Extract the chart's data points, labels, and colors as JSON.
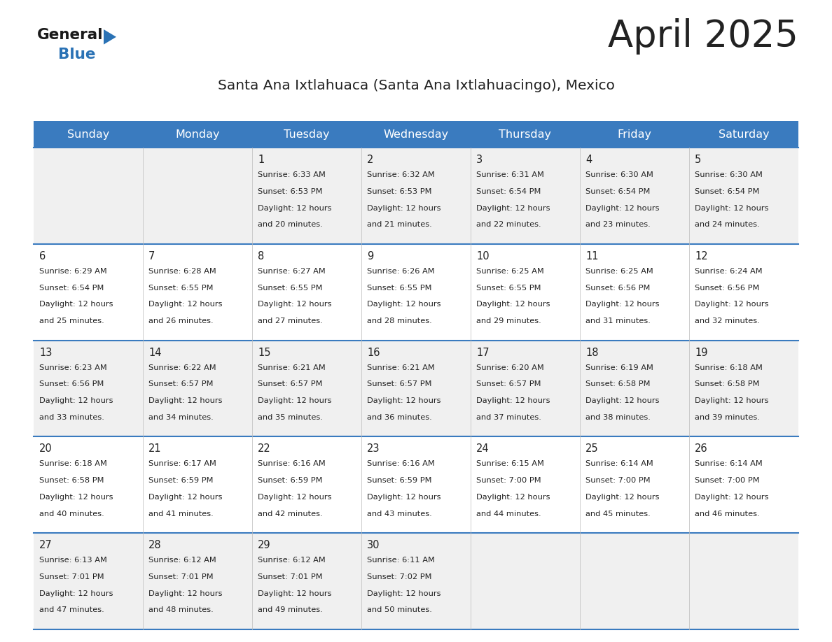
{
  "title": "April 2025",
  "subtitle": "Santa Ana Ixtlahuaca (Santa Ana Ixtlahuacingo), Mexico",
  "header_color": "#3a7bbf",
  "header_text_color": "#ffffff",
  "day_names": [
    "Sunday",
    "Monday",
    "Tuesday",
    "Wednesday",
    "Thursday",
    "Friday",
    "Saturday"
  ],
  "bg_color": "#ffffff",
  "cell_bg_even": "#f0f0f0",
  "cell_bg_odd": "#ffffff",
  "border_color": "#3a7bbf",
  "text_color": "#222222",
  "logo_general_color": "#1a1a1a",
  "logo_blue_color": "#2a72b5",
  "logo_triangle_color": "#2a72b5",
  "days": [
    {
      "date": 1,
      "col": 2,
      "row": 0,
      "sunrise": "6:33 AM",
      "sunset": "6:53 PM",
      "daylight_hours": 12,
      "daylight_minutes": 20
    },
    {
      "date": 2,
      "col": 3,
      "row": 0,
      "sunrise": "6:32 AM",
      "sunset": "6:53 PM",
      "daylight_hours": 12,
      "daylight_minutes": 21
    },
    {
      "date": 3,
      "col": 4,
      "row": 0,
      "sunrise": "6:31 AM",
      "sunset": "6:54 PM",
      "daylight_hours": 12,
      "daylight_minutes": 22
    },
    {
      "date": 4,
      "col": 5,
      "row": 0,
      "sunrise": "6:30 AM",
      "sunset": "6:54 PM",
      "daylight_hours": 12,
      "daylight_minutes": 23
    },
    {
      "date": 5,
      "col": 6,
      "row": 0,
      "sunrise": "6:30 AM",
      "sunset": "6:54 PM",
      "daylight_hours": 12,
      "daylight_minutes": 24
    },
    {
      "date": 6,
      "col": 0,
      "row": 1,
      "sunrise": "6:29 AM",
      "sunset": "6:54 PM",
      "daylight_hours": 12,
      "daylight_minutes": 25
    },
    {
      "date": 7,
      "col": 1,
      "row": 1,
      "sunrise": "6:28 AM",
      "sunset": "6:55 PM",
      "daylight_hours": 12,
      "daylight_minutes": 26
    },
    {
      "date": 8,
      "col": 2,
      "row": 1,
      "sunrise": "6:27 AM",
      "sunset": "6:55 PM",
      "daylight_hours": 12,
      "daylight_minutes": 27
    },
    {
      "date": 9,
      "col": 3,
      "row": 1,
      "sunrise": "6:26 AM",
      "sunset": "6:55 PM",
      "daylight_hours": 12,
      "daylight_minutes": 28
    },
    {
      "date": 10,
      "col": 4,
      "row": 1,
      "sunrise": "6:25 AM",
      "sunset": "6:55 PM",
      "daylight_hours": 12,
      "daylight_minutes": 29
    },
    {
      "date": 11,
      "col": 5,
      "row": 1,
      "sunrise": "6:25 AM",
      "sunset": "6:56 PM",
      "daylight_hours": 12,
      "daylight_minutes": 31
    },
    {
      "date": 12,
      "col": 6,
      "row": 1,
      "sunrise": "6:24 AM",
      "sunset": "6:56 PM",
      "daylight_hours": 12,
      "daylight_minutes": 32
    },
    {
      "date": 13,
      "col": 0,
      "row": 2,
      "sunrise": "6:23 AM",
      "sunset": "6:56 PM",
      "daylight_hours": 12,
      "daylight_minutes": 33
    },
    {
      "date": 14,
      "col": 1,
      "row": 2,
      "sunrise": "6:22 AM",
      "sunset": "6:57 PM",
      "daylight_hours": 12,
      "daylight_minutes": 34
    },
    {
      "date": 15,
      "col": 2,
      "row": 2,
      "sunrise": "6:21 AM",
      "sunset": "6:57 PM",
      "daylight_hours": 12,
      "daylight_minutes": 35
    },
    {
      "date": 16,
      "col": 3,
      "row": 2,
      "sunrise": "6:21 AM",
      "sunset": "6:57 PM",
      "daylight_hours": 12,
      "daylight_minutes": 36
    },
    {
      "date": 17,
      "col": 4,
      "row": 2,
      "sunrise": "6:20 AM",
      "sunset": "6:57 PM",
      "daylight_hours": 12,
      "daylight_minutes": 37
    },
    {
      "date": 18,
      "col": 5,
      "row": 2,
      "sunrise": "6:19 AM",
      "sunset": "6:58 PM",
      "daylight_hours": 12,
      "daylight_minutes": 38
    },
    {
      "date": 19,
      "col": 6,
      "row": 2,
      "sunrise": "6:18 AM",
      "sunset": "6:58 PM",
      "daylight_hours": 12,
      "daylight_minutes": 39
    },
    {
      "date": 20,
      "col": 0,
      "row": 3,
      "sunrise": "6:18 AM",
      "sunset": "6:58 PM",
      "daylight_hours": 12,
      "daylight_minutes": 40
    },
    {
      "date": 21,
      "col": 1,
      "row": 3,
      "sunrise": "6:17 AM",
      "sunset": "6:59 PM",
      "daylight_hours": 12,
      "daylight_minutes": 41
    },
    {
      "date": 22,
      "col": 2,
      "row": 3,
      "sunrise": "6:16 AM",
      "sunset": "6:59 PM",
      "daylight_hours": 12,
      "daylight_minutes": 42
    },
    {
      "date": 23,
      "col": 3,
      "row": 3,
      "sunrise": "6:16 AM",
      "sunset": "6:59 PM",
      "daylight_hours": 12,
      "daylight_minutes": 43
    },
    {
      "date": 24,
      "col": 4,
      "row": 3,
      "sunrise": "6:15 AM",
      "sunset": "7:00 PM",
      "daylight_hours": 12,
      "daylight_minutes": 44
    },
    {
      "date": 25,
      "col": 5,
      "row": 3,
      "sunrise": "6:14 AM",
      "sunset": "7:00 PM",
      "daylight_hours": 12,
      "daylight_minutes": 45
    },
    {
      "date": 26,
      "col": 6,
      "row": 3,
      "sunrise": "6:14 AM",
      "sunset": "7:00 PM",
      "daylight_hours": 12,
      "daylight_minutes": 46
    },
    {
      "date": 27,
      "col": 0,
      "row": 4,
      "sunrise": "6:13 AM",
      "sunset": "7:01 PM",
      "daylight_hours": 12,
      "daylight_minutes": 47
    },
    {
      "date": 28,
      "col": 1,
      "row": 4,
      "sunrise": "6:12 AM",
      "sunset": "7:01 PM",
      "daylight_hours": 12,
      "daylight_minutes": 48
    },
    {
      "date": 29,
      "col": 2,
      "row": 4,
      "sunrise": "6:12 AM",
      "sunset": "7:01 PM",
      "daylight_hours": 12,
      "daylight_minutes": 49
    },
    {
      "date": 30,
      "col": 3,
      "row": 4,
      "sunrise": "6:11 AM",
      "sunset": "7:02 PM",
      "daylight_hours": 12,
      "daylight_minutes": 50
    }
  ]
}
